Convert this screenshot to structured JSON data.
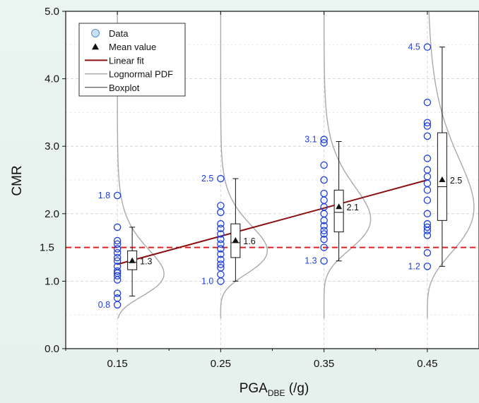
{
  "chart_data": {
    "type": "scatter",
    "xlabel_main": "PGA",
    "xlabel_sub": "DBE",
    "xlabel_unit": " (/g)",
    "ylabel": "CMR",
    "xlim": [
      0.1,
      0.5
    ],
    "ylim": [
      0.0,
      5.0
    ],
    "x_ticks": [
      {
        "value": 0.15,
        "label": "0.15"
      },
      {
        "value": 0.25,
        "label": "0.25"
      },
      {
        "value": 0.35,
        "label": "0.35"
      },
      {
        "value": 0.45,
        "label": "0.45"
      }
    ],
    "y_ticks": [
      {
        "value": 0.0,
        "label": "0.0"
      },
      {
        "value": 1.0,
        "label": "1.0"
      },
      {
        "value": 2.0,
        "label": "2.0"
      },
      {
        "value": 3.0,
        "label": "3.0"
      },
      {
        "value": 4.0,
        "label": "4.0"
      },
      {
        "value": 5.0,
        "label": "5.0"
      }
    ],
    "grid": true,
    "legend_position": "top-left",
    "legend": [
      {
        "label": "Data",
        "kind": "circle"
      },
      {
        "label": "Mean value",
        "kind": "triangle"
      },
      {
        "label": "Linear fit",
        "kind": "line-red"
      },
      {
        "label": "Lognormal PDF",
        "kind": "line-gray"
      },
      {
        "label": "Boxplot",
        "kind": "line-black"
      }
    ],
    "threshold": {
      "value": 1.5,
      "label": "1.5",
      "color": "#e02020"
    },
    "groups": [
      {
        "x": 0.15,
        "data": [
          2.27,
          1.8,
          1.6,
          1.55,
          1.48,
          1.42,
          1.35,
          1.3,
          1.22,
          1.15,
          1.12,
          1.08,
          1.02,
          0.82,
          0.75,
          0.65
        ],
        "mean": 1.3,
        "mean_label": "1.3",
        "box": {
          "min": 0.78,
          "q1": 1.17,
          "median": 1.28,
          "q3": 1.45,
          "max": 1.8
        },
        "max_label": "1.8",
        "min_label": "0.8"
      },
      {
        "x": 0.25,
        "data": [
          2.52,
          2.12,
          2.02,
          1.85,
          1.78,
          1.7,
          1.62,
          1.55,
          1.48,
          1.4,
          1.32,
          1.25,
          1.2,
          1.1,
          1.0
        ],
        "mean": 1.6,
        "mean_label": "1.6",
        "box": {
          "min": 1.0,
          "q1": 1.35,
          "median": 1.57,
          "q3": 1.85,
          "max": 2.52
        },
        "max_label": "2.5",
        "min_label": "1.0"
      },
      {
        "x": 0.35,
        "data": [
          3.1,
          3.05,
          2.72,
          2.5,
          2.3,
          2.2,
          2.1,
          2.0,
          1.9,
          1.82,
          1.75,
          1.7,
          1.62,
          1.5,
          1.3
        ],
        "mean": 2.1,
        "mean_label": "2.1",
        "box": {
          "min": 1.3,
          "q1": 1.73,
          "median": 2.02,
          "q3": 2.35,
          "max": 3.07
        },
        "max_label": "3.1",
        "min_label": "1.3"
      },
      {
        "x": 0.45,
        "data": [
          4.47,
          3.65,
          3.35,
          3.3,
          3.15,
          2.82,
          2.65,
          2.55,
          2.45,
          2.35,
          2.2,
          2.0,
          1.85,
          1.8,
          1.75,
          1.68,
          1.42,
          1.22
        ],
        "mean": 2.5,
        "mean_label": "2.5",
        "box": {
          "min": 1.22,
          "q1": 1.9,
          "median": 2.4,
          "q3": 3.2,
          "max": 4.47
        },
        "max_label": "4.5",
        "min_label": "1.2"
      }
    ],
    "linear_fit": {
      "x": [
        0.15,
        0.45
      ],
      "y": [
        1.25,
        2.5
      ]
    },
    "colors": {
      "data": "#1f3fd6",
      "data_fill": "#c9dff3",
      "annotation": "#1f3fd6",
      "mean": "#111111",
      "fit": "#8b1010",
      "pdf": "#a9a9a9",
      "threshold": "#e02020"
    }
  }
}
